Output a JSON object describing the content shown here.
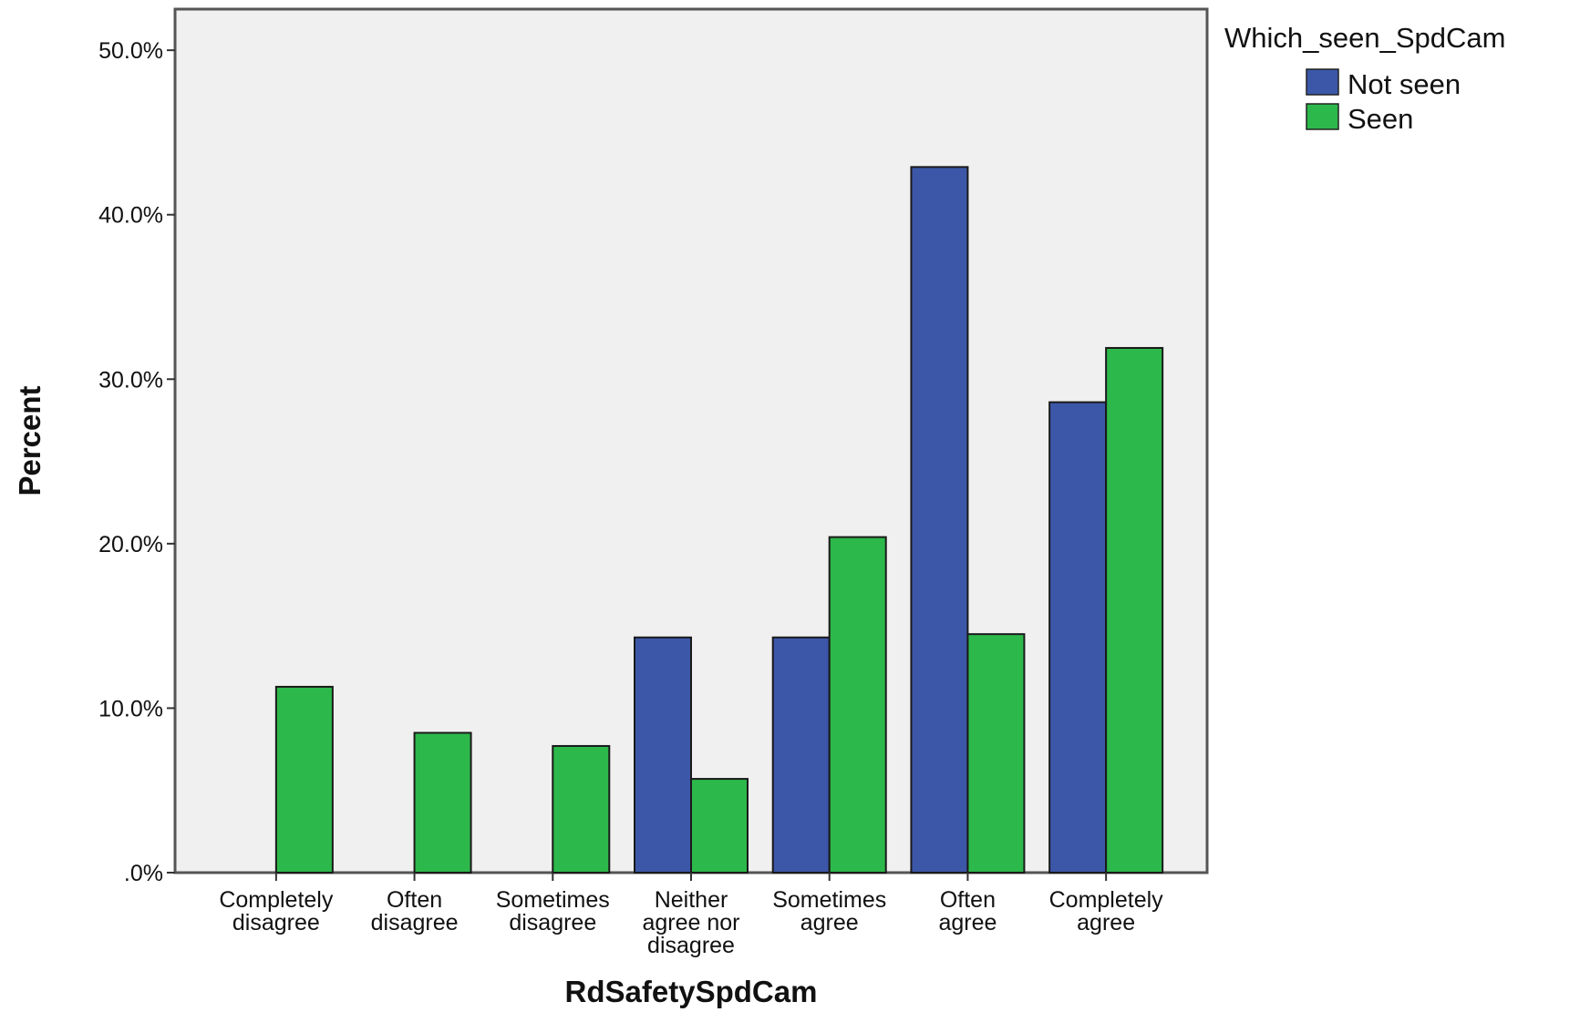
{
  "chart_data": {
    "type": "bar",
    "xlabel": "RdSafetySpdCam",
    "ylabel": "Percent",
    "ylim": [
      0,
      52.5
    ],
    "yticks": [
      0,
      10,
      20,
      30,
      40,
      50
    ],
    "ytick_labels": [
      ".0%",
      "10.0%",
      "20.0%",
      "30.0%",
      "40.0%",
      "50.0%"
    ],
    "categories": [
      [
        "Completely",
        "disagree"
      ],
      [
        "Often",
        "disagree"
      ],
      [
        "Sometimes",
        "disagree"
      ],
      [
        "Neither",
        "agree nor",
        "disagree"
      ],
      [
        "Sometimes",
        "agree"
      ],
      [
        "Often",
        "agree"
      ],
      [
        "Completely",
        "agree"
      ]
    ],
    "legend": {
      "title": "Which_seen_SpdCam",
      "position": "top-right"
    },
    "series": [
      {
        "name": "Not seen",
        "color": "#3c57a8",
        "values": [
          0,
          0,
          0,
          14.3,
          14.3,
          42.9,
          28.6
        ]
      },
      {
        "name": "Seen",
        "color": "#2db84b",
        "values": [
          11.3,
          8.5,
          7.7,
          5.7,
          20.4,
          14.5,
          31.9
        ]
      }
    ],
    "plot_background": "#f0f0f0",
    "grid": false
  }
}
